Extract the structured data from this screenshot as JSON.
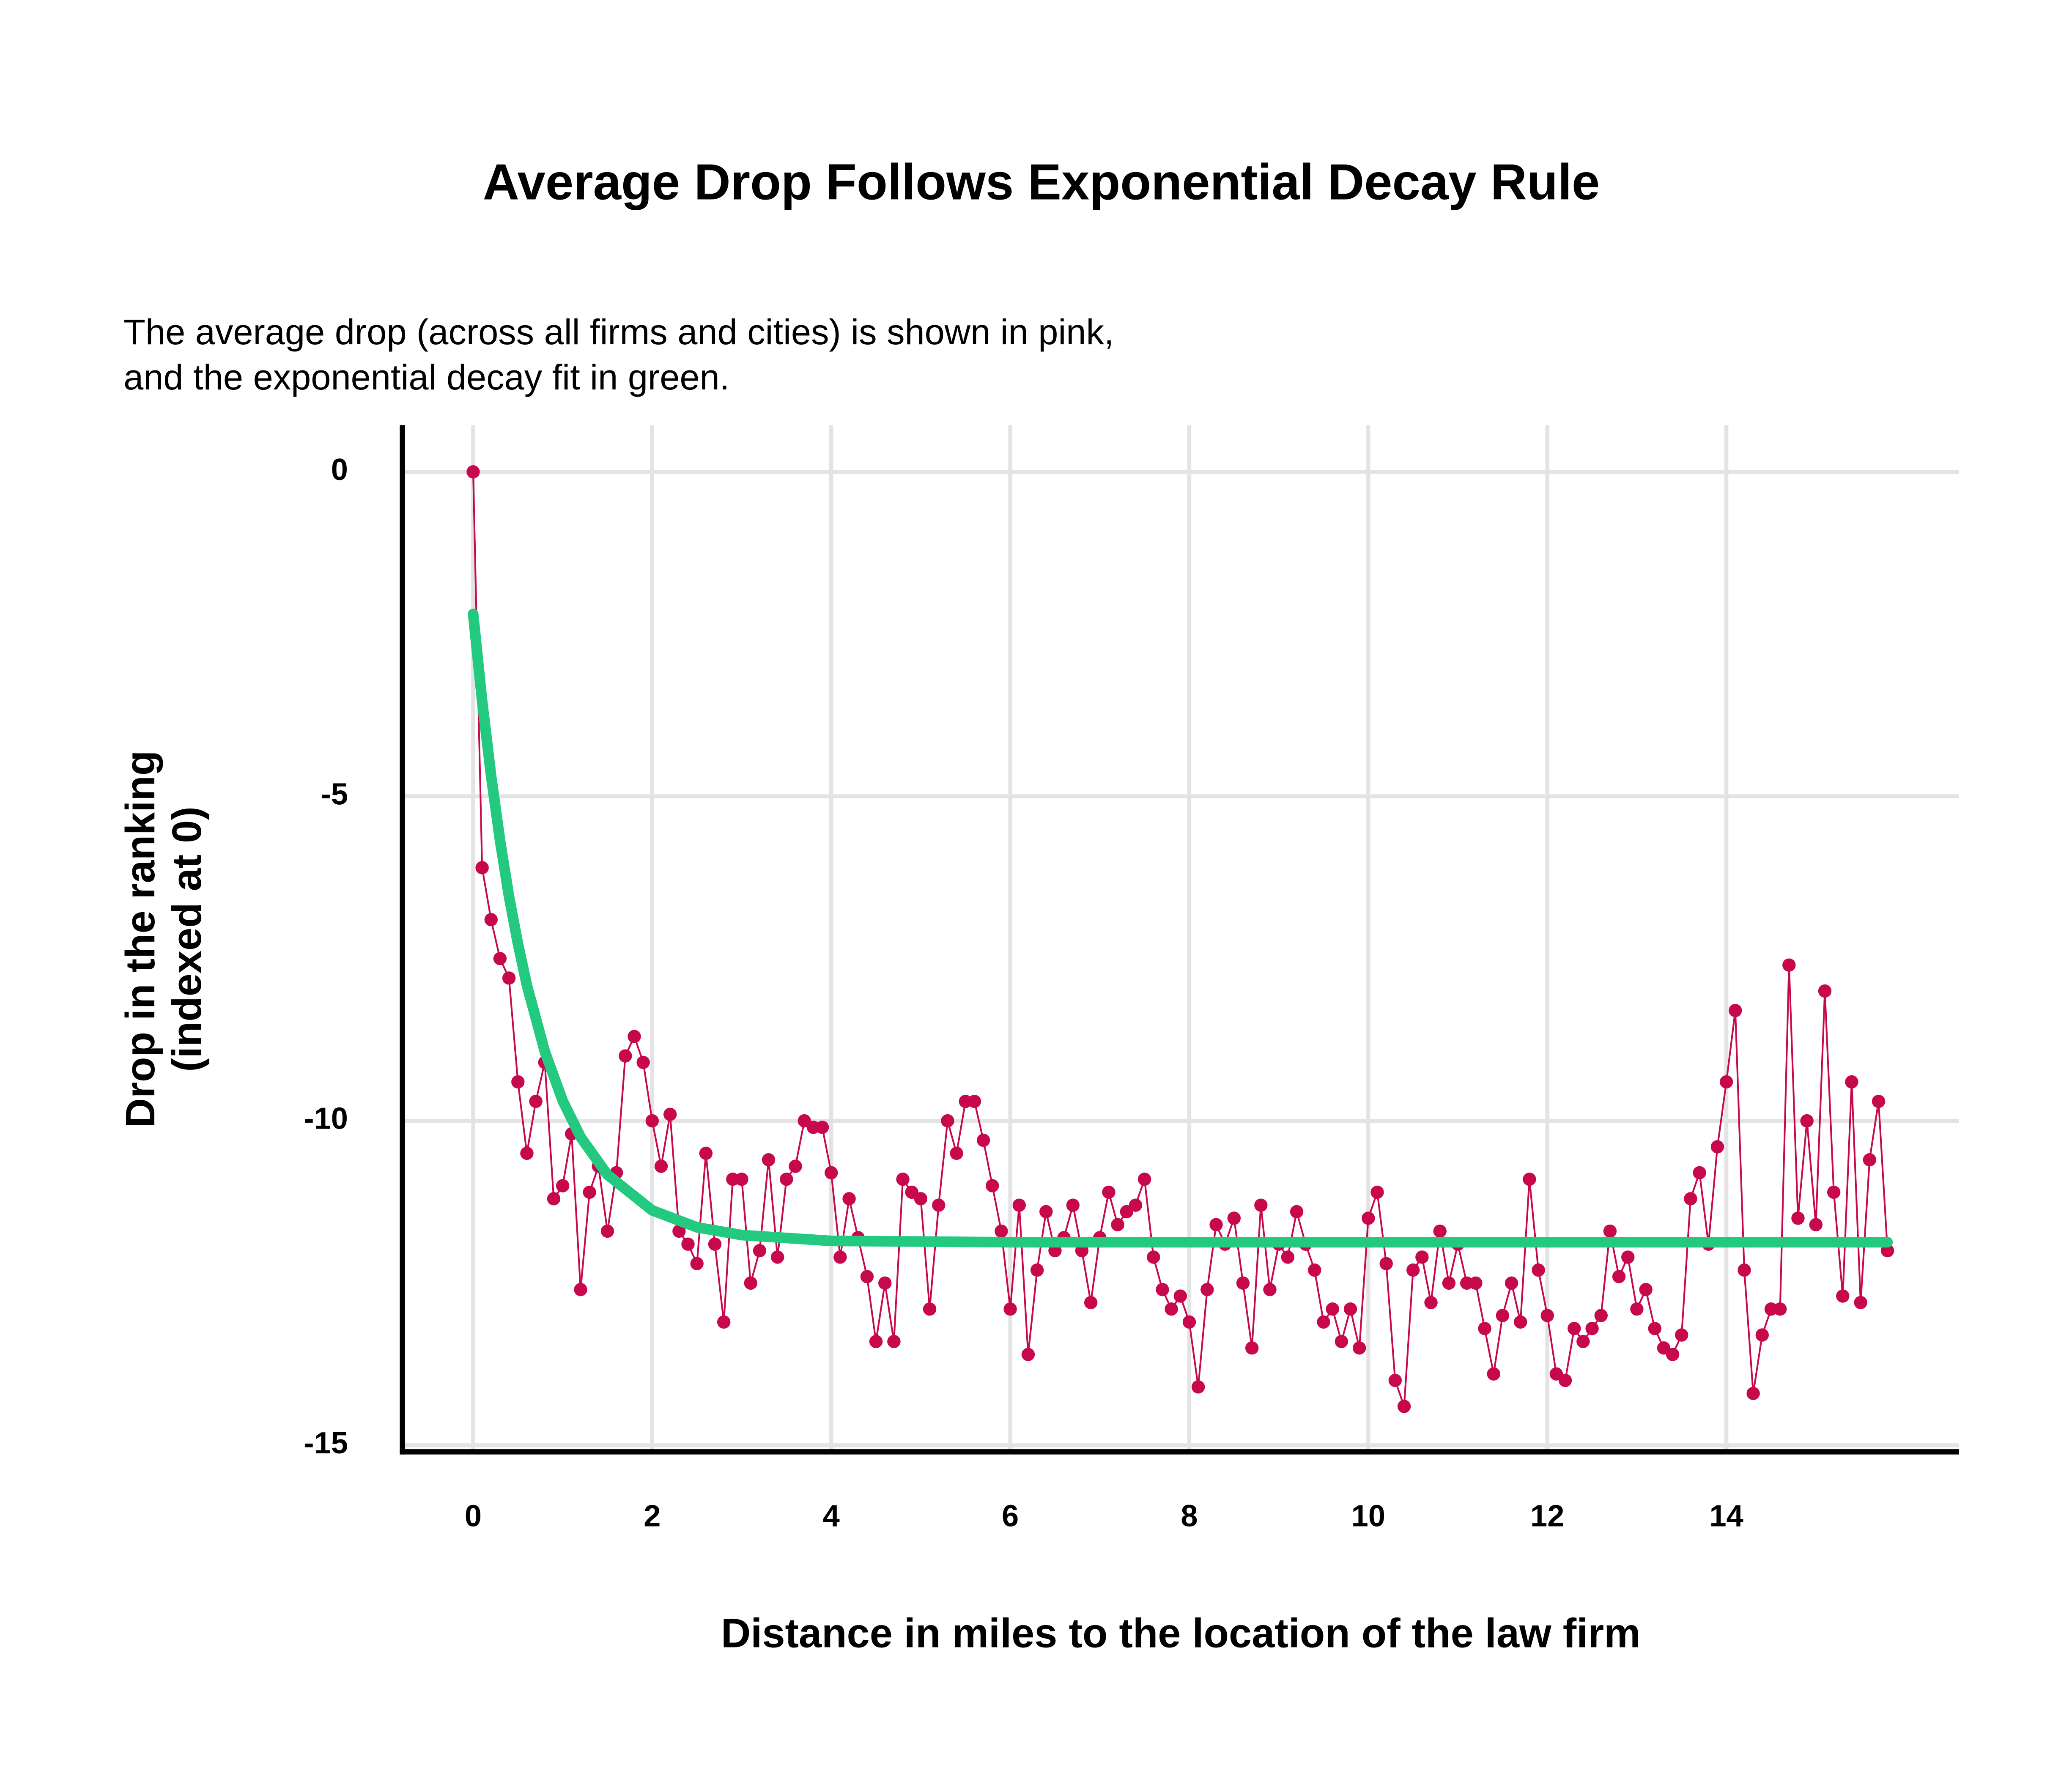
{
  "chart_data": {
    "type": "line",
    "title": "Average Drop Follows Exponential Decay Rule",
    "subtitle": [
      "The average drop (across all firms and cities) is shown in pink,",
      "and the exponential decay fit in green."
    ],
    "xlabel": "Distance in miles to the location of the law firm",
    "ylabel": [
      "Drop in the ranking",
      "(indexed at 0)"
    ],
    "xlim": [
      -0.79,
      16.6
    ],
    "ylim": [
      -15.1,
      0.72
    ],
    "xticks": [
      0,
      2,
      4,
      6,
      8,
      10,
      12,
      14
    ],
    "yticks": [
      0,
      -5,
      -10,
      -15
    ],
    "grid": true,
    "series": [
      {
        "color": "#c7084d",
        "markers": true,
        "x": [
          0,
          0.1,
          0.2,
          0.3,
          0.4,
          0.5,
          0.6,
          0.7,
          0.8,
          0.9,
          1.0,
          1.1,
          1.2,
          1.3,
          1.4,
          1.5,
          1.6,
          1.7,
          1.8,
          1.9,
          2.0,
          2.1,
          2.2,
          2.3,
          2.4,
          2.5,
          2.6,
          2.7,
          2.8,
          2.9,
          3.0,
          3.1,
          3.2,
          3.3,
          3.4,
          3.5,
          3.6,
          3.7,
          3.8,
          3.9,
          4.0,
          4.1,
          4.2,
          4.3,
          4.4,
          4.5,
          4.6,
          4.7,
          4.8,
          4.9,
          5.0,
          5.1,
          5.2,
          5.3,
          5.4,
          5.5,
          5.6,
          5.7,
          5.8,
          5.9,
          6.0,
          6.1,
          6.2,
          6.3,
          6.4,
          6.5,
          6.6,
          6.7,
          6.8,
          6.9,
          7.0,
          7.1,
          7.2,
          7.3,
          7.4,
          7.5,
          7.6,
          7.7,
          7.8,
          7.9,
          8.0,
          8.1,
          8.2,
          8.3,
          8.4,
          8.5,
          8.6,
          8.7,
          8.8,
          8.9,
          9.0,
          9.1,
          9.2,
          9.3,
          9.4,
          9.5,
          9.6,
          9.7,
          9.8,
          9.9,
          10.0,
          10.1,
          10.2,
          10.3,
          10.4,
          10.5,
          10.6,
          10.7,
          10.8,
          10.9,
          11.0,
          11.1,
          11.2,
          11.3,
          11.4,
          11.5,
          11.6,
          11.7,
          11.8,
          11.9,
          12.0,
          12.1,
          12.2,
          12.3,
          12.4,
          12.5,
          12.6,
          12.7,
          12.8,
          12.9,
          13.0,
          13.1,
          13.2,
          13.3,
          13.4,
          13.5,
          13.6,
          13.7,
          13.8,
          13.9,
          14.0,
          14.1,
          14.2,
          14.3,
          14.4,
          14.5,
          14.6,
          14.7,
          14.8,
          14.9,
          15.0,
          15.1,
          15.2,
          15.3,
          15.4,
          15.5,
          15.6,
          15.7,
          15.8
        ],
        "values": [
          0,
          -6.1,
          -6.9,
          -7.5,
          -7.8,
          -9.4,
          -10.5,
          -9.7,
          -9.1,
          -11.2,
          -11.0,
          -10.2,
          -12.6,
          -11.1,
          -10.7,
          -11.7,
          -10.8,
          -9.0,
          -8.7,
          -9.1,
          -10.0,
          -10.7,
          -9.9,
          -11.7,
          -11.9,
          -12.2,
          -10.5,
          -11.9,
          -13.1,
          -10.9,
          -10.9,
          -12.5,
          -12.0,
          -10.6,
          -12.1,
          -10.9,
          -10.7,
          -10.0,
          -10.1,
          -10.1,
          -10.8,
          -12.1,
          -11.2,
          -11.8,
          -12.4,
          -13.4,
          -12.5,
          -13.4,
          -10.9,
          -11.1,
          -11.2,
          -12.9,
          -11.3,
          -10.0,
          -10.5,
          -9.7,
          -9.7,
          -10.3,
          -11.0,
          -11.7,
          -12.9,
          -11.3,
          -13.6,
          -12.3,
          -11.4,
          -12.0,
          -11.8,
          -11.3,
          -12.0,
          -12.8,
          -11.8,
          -11.1,
          -11.6,
          -11.4,
          -11.3,
          -10.9,
          -12.1,
          -12.6,
          -12.9,
          -12.7,
          -13.1,
          -14.1,
          -12.6,
          -11.6,
          -11.9,
          -11.5,
          -12.5,
          -13.5,
          -11.3,
          -12.6,
          -11.9,
          -12.1,
          -11.4,
          -11.9,
          -12.3,
          -13.1,
          -12.9,
          -13.4,
          -12.9,
          -13.5,
          -11.5,
          -11.1,
          -12.2,
          -14.0,
          -14.4,
          -12.3,
          -12.1,
          -12.8,
          -11.7,
          -12.5,
          -11.9,
          -12.5,
          -12.5,
          -13.2,
          -13.9,
          -13.0,
          -12.5,
          -13.1,
          -10.9,
          -12.3,
          -13.0,
          -13.9,
          -14.0,
          -13.2,
          -13.4,
          -13.2,
          -13.0,
          -11.7,
          -12.4,
          -12.1,
          -12.9,
          -12.6,
          -13.2,
          -13.5,
          -13.6,
          -13.3,
          -11.2,
          -10.8,
          -11.9,
          -10.4,
          -9.4,
          -8.3,
          -12.3,
          -14.2,
          -13.3,
          -12.9,
          -12.9,
          -7.6,
          -11.5,
          -10.0,
          -11.6,
          -8.0,
          -11.1,
          -12.7,
          -9.4,
          -12.8,
          -10.6,
          -9.7,
          -12.0
        ]
      },
      {
        "color": "#22c97f",
        "markers": false,
        "x": [
          0,
          0.1,
          0.2,
          0.3,
          0.4,
          0.5,
          0.6,
          0.8,
          1.0,
          1.2,
          1.5,
          2,
          2.5,
          3,
          4,
          6,
          15.8
        ],
        "values": [
          -2.19,
          -3.53,
          -4.68,
          -5.68,
          -6.54,
          -7.27,
          -7.91,
          -8.93,
          -9.69,
          -10.25,
          -10.83,
          -11.38,
          -11.64,
          -11.76,
          -11.85,
          -11.87,
          -11.87
        ]
      }
    ]
  }
}
